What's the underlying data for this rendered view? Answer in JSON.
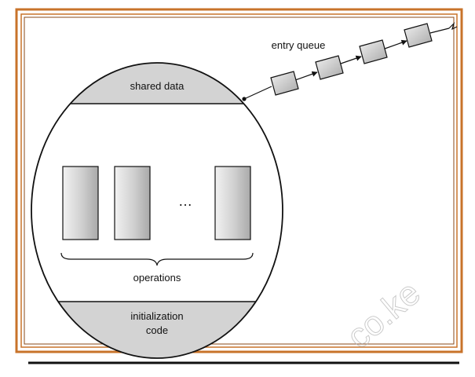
{
  "diagram": {
    "entry_queue_label": "entry queue",
    "shared_data_label": "shared data",
    "ellipsis": "…",
    "operations_label": "operations",
    "init_code_line1": "initialization",
    "init_code_line2": "code"
  },
  "watermark": {
    "text": "co.ke"
  },
  "colors": {
    "frame": "#c8732a",
    "section_fill": "#d3d3d3",
    "queue_fill": "#cfcfcf"
  }
}
